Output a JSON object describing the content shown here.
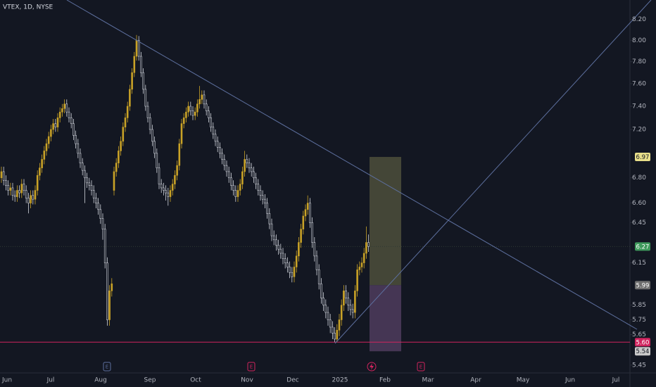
{
  "chart_data": {
    "type": "candlestick",
    "title": "VTEX, 1D, NYSE",
    "up_color": "#c9a227",
    "down_color": "#131722",
    "down_stroke": "#d1d4dc",
    "ylim": [
      5.4,
      8.39
    ],
    "log_scale": true,
    "yticks": [
      {
        "value": 8.2,
        "label": "8.20"
      },
      {
        "value": 8.0,
        "label": "8.00"
      },
      {
        "value": 7.8,
        "label": "7.80"
      },
      {
        "value": 7.6,
        "label": "7.60"
      },
      {
        "value": 7.4,
        "label": "7.40"
      },
      {
        "value": 7.2,
        "label": "7.20"
      },
      {
        "value": 6.8,
        "label": "6.80"
      },
      {
        "value": 6.6,
        "label": "6.60"
      },
      6.45,
      6.15,
      5.85,
      5.75,
      5.65,
      5.45
    ],
    "months": [
      "Jun",
      "Jul",
      "Aug",
      "Sep",
      "Oct",
      "Nov",
      "Dec",
      "2025",
      "Feb",
      "Mar",
      "Apr",
      "May",
      "Jun",
      "Jul"
    ],
    "events": [
      "E",
      "E",
      "E"
    ],
    "price_levels": [
      {
        "value": 6.97,
        "color": "#e8df8a"
      },
      {
        "value": 6.27,
        "color": "#3f9a5c"
      },
      {
        "value": 5.99,
        "color": "#6e6e6e"
      },
      {
        "value": 5.6,
        "label": "5.60",
        "color": "#d0245e"
      },
      {
        "value": 5.54,
        "color": "#c9c9c9"
      }
    ],
    "candles": [
      [
        6.8,
        6.89,
        6.76,
        6.85
      ],
      [
        6.85,
        6.89,
        6.74,
        6.78
      ],
      [
        6.78,
        6.82,
        6.7,
        6.74
      ],
      [
        6.74,
        6.78,
        6.66,
        6.7
      ],
      [
        6.7,
        6.76,
        6.66,
        6.72
      ],
      [
        6.72,
        6.76,
        6.62,
        6.66
      ],
      [
        6.66,
        6.7,
        6.61,
        6.65
      ],
      [
        6.65,
        6.74,
        6.61,
        6.7
      ],
      [
        6.7,
        6.74,
        6.64,
        6.68
      ],
      [
        6.68,
        6.79,
        6.64,
        6.75
      ],
      [
        6.75,
        6.79,
        6.66,
        6.7
      ],
      [
        6.7,
        6.74,
        6.6,
        6.64
      ],
      [
        6.64,
        6.68,
        6.52,
        6.6
      ],
      [
        6.6,
        6.7,
        6.56,
        6.66
      ],
      [
        6.66,
        6.7,
        6.59,
        6.63
      ],
      [
        6.63,
        6.74,
        6.59,
        6.7
      ],
      [
        6.7,
        6.86,
        6.66,
        6.82
      ],
      [
        6.82,
        6.92,
        6.78,
        6.88
      ],
      [
        6.88,
        6.99,
        6.84,
        6.95
      ],
      [
        6.95,
        7.06,
        6.91,
        7.02
      ],
      [
        7.02,
        7.12,
        6.98,
        7.08
      ],
      [
        7.08,
        7.18,
        7.04,
        7.14
      ],
      [
        7.14,
        7.24,
        7.1,
        7.2
      ],
      [
        7.2,
        7.29,
        7.16,
        7.25
      ],
      [
        7.25,
        7.29,
        7.18,
        7.22
      ],
      [
        7.22,
        7.34,
        7.18,
        7.3
      ],
      [
        7.3,
        7.39,
        7.26,
        7.35
      ],
      [
        7.35,
        7.42,
        7.31,
        7.38
      ],
      [
        7.38,
        7.46,
        7.34,
        7.42
      ],
      [
        7.42,
        7.46,
        7.31,
        7.35
      ],
      [
        7.35,
        7.39,
        7.26,
        7.3
      ],
      [
        7.3,
        7.34,
        7.21,
        7.25
      ],
      [
        7.25,
        7.29,
        7.11,
        7.15
      ],
      [
        7.15,
        7.19,
        7.04,
        7.08
      ],
      [
        7.08,
        7.12,
        6.96,
        7.0
      ],
      [
        7.0,
        7.04,
        6.88,
        6.92
      ],
      [
        6.92,
        6.96,
        6.82,
        6.86
      ],
      [
        6.86,
        6.9,
        6.6,
        6.8
      ],
      [
        6.8,
        6.84,
        6.72,
        6.76
      ],
      [
        6.76,
        6.8,
        6.7,
        6.74
      ],
      [
        6.74,
        6.78,
        6.66,
        6.7
      ],
      [
        6.7,
        6.74,
        6.6,
        6.64
      ],
      [
        6.64,
        6.68,
        6.56,
        6.6
      ],
      [
        6.6,
        6.64,
        6.51,
        6.55
      ],
      [
        6.55,
        6.59,
        6.44,
        6.48
      ],
      [
        6.48,
        6.52,
        6.32,
        6.4
      ],
      [
        6.4,
        6.44,
        6.11,
        6.15
      ],
      [
        6.15,
        6.19,
        5.71,
        5.75
      ],
      [
        5.75,
        5.99,
        5.71,
        5.95
      ],
      [
        5.95,
        6.04,
        5.91,
        6.0
      ],
      [
        6.7,
        6.89,
        6.66,
        6.85
      ],
      [
        6.85,
        6.96,
        6.81,
        6.92
      ],
      [
        6.92,
        7.06,
        6.88,
        7.02
      ],
      [
        7.02,
        7.14,
        6.98,
        7.1
      ],
      [
        7.1,
        7.26,
        7.06,
        7.22
      ],
      [
        7.22,
        7.34,
        7.18,
        7.3
      ],
      [
        7.3,
        7.44,
        7.26,
        7.4
      ],
      [
        7.4,
        7.59,
        7.36,
        7.55
      ],
      [
        7.55,
        7.74,
        7.51,
        7.7
      ],
      [
        7.7,
        7.89,
        7.66,
        7.85
      ],
      [
        7.85,
        8.05,
        7.81,
        8.0
      ],
      [
        8.0,
        8.04,
        7.81,
        7.85
      ],
      [
        7.85,
        7.89,
        7.66,
        7.7
      ],
      [
        7.7,
        7.74,
        7.51,
        7.55
      ],
      [
        7.55,
        7.59,
        7.36,
        7.4
      ],
      [
        7.4,
        7.44,
        7.26,
        7.3
      ],
      [
        7.3,
        7.34,
        7.16,
        7.2
      ],
      [
        7.2,
        7.24,
        7.06,
        7.1
      ],
      [
        7.1,
        7.14,
        6.96,
        7.0
      ],
      [
        7.0,
        7.04,
        6.84,
        6.88
      ],
      [
        6.88,
        6.92,
        6.71,
        6.75
      ],
      [
        6.75,
        6.79,
        6.68,
        6.72
      ],
      [
        6.72,
        6.76,
        6.66,
        6.7
      ],
      [
        6.7,
        6.74,
        6.62,
        6.68
      ],
      [
        6.68,
        6.72,
        6.58,
        6.65
      ],
      [
        6.65,
        6.74,
        6.61,
        6.7
      ],
      [
        6.7,
        6.79,
        6.66,
        6.75
      ],
      [
        6.75,
        6.86,
        6.71,
        6.82
      ],
      [
        6.82,
        6.94,
        6.78,
        6.9
      ],
      [
        6.9,
        7.12,
        6.86,
        7.08
      ],
      [
        7.08,
        7.29,
        7.04,
        7.25
      ],
      [
        7.25,
        7.34,
        7.21,
        7.3
      ],
      [
        7.3,
        7.39,
        7.26,
        7.35
      ],
      [
        7.35,
        7.44,
        7.31,
        7.4
      ],
      [
        7.4,
        7.44,
        7.32,
        7.36
      ],
      [
        7.36,
        7.4,
        7.28,
        7.32
      ],
      [
        7.32,
        7.39,
        7.28,
        7.35
      ],
      [
        7.35,
        7.46,
        7.31,
        7.42
      ],
      [
        7.42,
        7.58,
        7.38,
        7.46
      ],
      [
        7.46,
        7.54,
        7.42,
        7.5
      ],
      [
        7.5,
        7.54,
        7.38,
        7.42
      ],
      [
        7.42,
        7.46,
        7.32,
        7.36
      ],
      [
        7.36,
        7.4,
        7.26,
        7.3
      ],
      [
        7.3,
        7.34,
        7.18,
        7.22
      ],
      [
        7.22,
        7.26,
        7.12,
        7.16
      ],
      [
        7.16,
        7.2,
        7.06,
        7.1
      ],
      [
        7.1,
        7.14,
        7.01,
        7.05
      ],
      [
        7.05,
        7.09,
        6.96,
        7.0
      ],
      [
        7.0,
        7.04,
        6.91,
        6.95
      ],
      [
        6.95,
        6.99,
        6.86,
        6.9
      ],
      [
        6.9,
        6.94,
        6.81,
        6.85
      ],
      [
        6.85,
        6.89,
        6.76,
        6.8
      ],
      [
        6.8,
        6.84,
        6.7,
        6.74
      ],
      [
        6.74,
        6.78,
        6.66,
        6.7
      ],
      [
        6.7,
        6.74,
        6.61,
        6.65
      ],
      [
        6.65,
        6.74,
        6.61,
        6.7
      ],
      [
        6.7,
        6.79,
        6.66,
        6.75
      ],
      [
        6.75,
        6.89,
        6.71,
        6.85
      ],
      [
        6.85,
        7.02,
        6.81,
        6.95
      ],
      [
        6.95,
        6.99,
        6.88,
        6.92
      ],
      [
        6.92,
        6.96,
        6.84,
        6.88
      ],
      [
        6.88,
        6.92,
        6.81,
        6.85
      ],
      [
        6.85,
        6.89,
        6.76,
        6.8
      ],
      [
        6.8,
        6.84,
        6.71,
        6.75
      ],
      [
        6.75,
        6.79,
        6.66,
        6.7
      ],
      [
        6.7,
        6.74,
        6.62,
        6.66
      ],
      [
        6.66,
        6.7,
        6.59,
        6.63
      ],
      [
        6.63,
        6.67,
        6.56,
        6.6
      ],
      [
        6.6,
        6.64,
        6.48,
        6.52
      ],
      [
        6.52,
        6.56,
        6.4,
        6.44
      ],
      [
        6.44,
        6.48,
        6.31,
        6.35
      ],
      [
        6.35,
        6.39,
        6.28,
        6.32
      ],
      [
        6.32,
        6.36,
        6.24,
        6.28
      ],
      [
        6.28,
        6.32,
        6.21,
        6.25
      ],
      [
        6.25,
        6.29,
        6.18,
        6.22
      ],
      [
        6.22,
        6.26,
        6.14,
        6.18
      ],
      [
        6.18,
        6.22,
        6.11,
        6.15
      ],
      [
        6.15,
        6.19,
        6.08,
        6.12
      ],
      [
        6.12,
        6.16,
        6.04,
        6.08
      ],
      [
        6.08,
        6.12,
        6.01,
        6.05
      ],
      [
        6.05,
        6.16,
        6.01,
        6.12
      ],
      [
        6.12,
        6.24,
        6.08,
        6.2
      ],
      [
        6.2,
        6.34,
        6.16,
        6.3
      ],
      [
        6.3,
        6.44,
        6.26,
        6.4
      ],
      [
        6.4,
        6.54,
        6.36,
        6.5
      ],
      [
        6.5,
        6.59,
        6.46,
        6.55
      ],
      [
        6.55,
        6.66,
        6.51,
        6.6
      ],
      [
        6.6,
        6.64,
        6.41,
        6.45
      ],
      [
        6.45,
        6.49,
        6.26,
        6.3
      ],
      [
        6.3,
        6.34,
        6.16,
        6.2
      ],
      [
        6.2,
        6.24,
        6.06,
        6.1
      ],
      [
        6.1,
        6.14,
        5.96,
        6.0
      ],
      [
        6.0,
        6.04,
        5.86,
        5.9
      ],
      [
        5.9,
        5.94,
        5.81,
        5.85
      ],
      [
        5.85,
        5.89,
        5.76,
        5.8
      ],
      [
        5.8,
        5.84,
        5.71,
        5.75
      ],
      [
        5.75,
        5.79,
        5.66,
        5.7
      ],
      [
        5.7,
        5.74,
        5.62,
        5.66
      ],
      [
        5.66,
        5.7,
        5.6,
        5.62
      ],
      [
        5.62,
        5.72,
        5.6,
        5.68
      ],
      [
        5.68,
        5.79,
        5.64,
        5.75
      ],
      [
        5.75,
        5.89,
        5.71,
        5.85
      ],
      [
        5.85,
        5.99,
        5.81,
        5.95
      ],
      [
        5.95,
        5.99,
        5.86,
        5.9
      ],
      [
        5.9,
        5.94,
        5.81,
        5.85
      ],
      [
        5.85,
        5.89,
        5.78,
        5.82
      ],
      [
        5.82,
        5.86,
        5.76,
        5.8
      ],
      [
        5.8,
        5.99,
        5.76,
        5.95
      ],
      [
        5.95,
        6.14,
        5.91,
        6.1
      ],
      [
        6.1,
        6.16,
        6.06,
        6.12
      ],
      [
        6.12,
        6.19,
        6.08,
        6.15
      ],
      [
        6.15,
        6.26,
        6.11,
        6.22
      ],
      [
        6.22,
        6.42,
        6.18,
        6.3
      ],
      [
        6.3,
        6.36,
        6.23,
        6.27
      ]
    ]
  }
}
